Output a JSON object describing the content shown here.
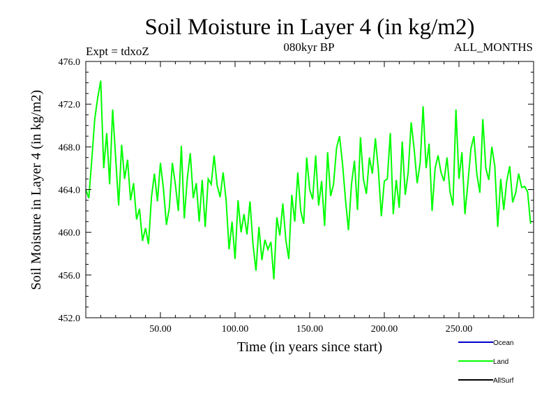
{
  "chart_data": {
    "type": "line",
    "title": "Soil Moisture in Layer 4 (in kg/m2)",
    "subtitle_left": "Expt = tdxoZ",
    "subtitle_center": "080kyr BP",
    "subtitle_right": "ALL_MONTHS",
    "xlabel": "Time (in years since start)",
    "ylabel": "Soil Moisture in Layer 4 (in kg/m2)",
    "xlim": [
      0,
      300
    ],
    "ylim": [
      452,
      476
    ],
    "xticks": [
      50,
      100,
      150,
      200,
      250
    ],
    "xtick_labels": [
      "50.00",
      "100.00",
      "150.00",
      "200.00",
      "250.00"
    ],
    "yticks": [
      452,
      456,
      460,
      464,
      468,
      472,
      476
    ],
    "ytick_labels": [
      "452.0",
      "456.0",
      "460.0",
      "464.0",
      "468.0",
      "472.0",
      "476.0"
    ],
    "legend": {
      "placement": "bottom-right",
      "entries": [
        {
          "name": "Ocean",
          "color": "#0000cc"
        },
        {
          "name": "Land",
          "color": "#00ff00"
        },
        {
          "name": "AllSurf",
          "color": "#000000"
        }
      ]
    },
    "series": [
      {
        "name": "Land",
        "color": "#00ff00",
        "x_start": 0,
        "x_step": 2,
        "values": [
          464.0,
          463.2,
          466.8,
          470.6,
          472.6,
          474.2,
          466.0,
          469.3,
          464.5,
          471.5,
          467.0,
          462.5,
          468.2,
          465.0,
          466.8,
          463.0,
          464.6,
          461.2,
          462.2,
          459.2,
          460.4,
          458.9,
          463.3,
          465.5,
          462.9,
          466.5,
          464.1,
          460.7,
          462.3,
          466.5,
          464.5,
          462.0,
          468.1,
          461.3,
          465.0,
          467.4,
          463.2,
          464.6,
          461.0,
          464.9,
          460.5,
          465.0,
          464.5,
          467.2,
          464.4,
          463.3,
          465.6,
          463.0,
          458.4,
          461.0,
          457.5,
          463.0,
          460.0,
          461.7,
          459.8,
          462.9,
          458.9,
          456.4,
          460.5,
          457.4,
          459.3,
          458.4,
          459.1,
          455.6,
          461.4,
          459.7,
          462.7,
          459.3,
          457.5,
          463.5,
          461.0,
          465.6,
          462.0,
          460.8,
          467.0,
          464.0,
          463.1,
          467.2,
          462.5,
          464.8,
          460.6,
          467.5,
          463.4,
          464.5,
          467.9,
          469.0,
          466.4,
          463.0,
          460.2,
          464.5,
          466.7,
          462.1,
          468.9,
          465.0,
          463.6,
          467.0,
          465.5,
          468.8,
          465.9,
          461.5,
          464.8,
          465.0,
          469.3,
          461.7,
          464.9,
          462.3,
          468.5,
          463.5,
          465.6,
          470.3,
          467.8,
          464.6,
          466.5,
          471.8,
          466.0,
          468.3,
          462.0,
          466.0,
          467.2,
          465.6,
          464.8,
          467.0,
          463.8,
          462.5,
          471.5,
          465.0,
          467.5,
          461.7,
          464.6,
          467.8,
          469.0,
          465.4,
          463.7,
          470.6,
          466.0,
          464.9,
          468.0,
          466.2,
          460.5,
          465.0,
          462.1,
          464.8,
          466.2,
          462.8,
          463.7,
          465.5,
          464.2,
          464.3,
          463.8,
          460.8
        ]
      }
    ]
  }
}
